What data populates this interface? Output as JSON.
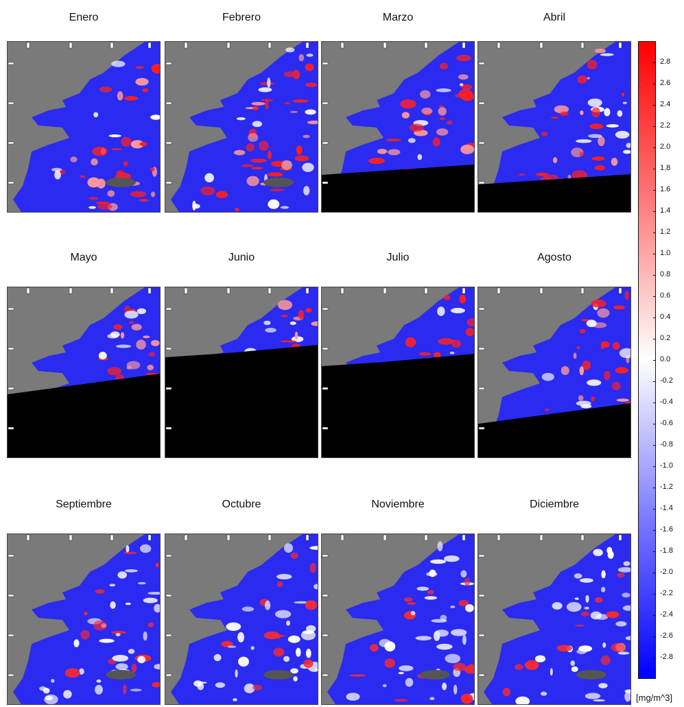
{
  "months": [
    "Enero",
    "Febrero",
    "Marzo",
    "Abril",
    "Mayo",
    "Junio",
    "Julio",
    "Agosto",
    "Septiembre",
    "Octubre",
    "Noviembre",
    "Diciembre"
  ],
  "colorbar": {
    "ticks": [
      "2.8",
      "2.6",
      "2.4",
      "2.2",
      "2.0",
      "1.8",
      "1.6",
      "1.4",
      "1.2",
      "1.0",
      "0.8",
      "0.6",
      "0.4",
      "0.2",
      "0.0",
      "-0.2",
      "-0.4",
      "-0.6",
      "-0.8",
      "-1.0",
      "-1.2",
      "-1.4",
      "-1.6",
      "-1.8",
      "-2.0",
      "-2.2",
      "-2.4",
      "-2.6",
      "-2.8"
    ],
    "range": [
      -3.0,
      3.0
    ],
    "colors": {
      "high": "#ff0000",
      "mid": "#ffffff",
      "low": "#0000ff"
    },
    "unit": "[mg/m^3]"
  },
  "map_colors": {
    "land": "#7a7a7a",
    "no_data": "#000000",
    "ocean_base": "#2a2af0"
  }
}
